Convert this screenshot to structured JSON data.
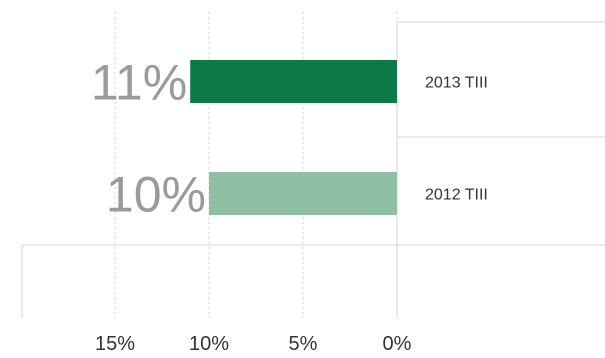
{
  "chart_data": {
    "type": "bar",
    "orientation": "horizontal",
    "x_direction": "reversed",
    "categories": [
      "2013 TIII",
      "2012 TIII"
    ],
    "values": [
      11,
      10
    ],
    "value_labels": [
      "11%",
      "10%"
    ],
    "colors": [
      "#0b7a45",
      "#8fbfa3"
    ],
    "xlim": [
      0,
      15
    ],
    "x_ticks": [
      15,
      10,
      5,
      0
    ],
    "x_tick_labels": [
      "15%",
      "10%",
      "5%",
      "0%"
    ],
    "grid": "vertical-dotted",
    "title": "",
    "xlabel": "",
    "ylabel": ""
  }
}
